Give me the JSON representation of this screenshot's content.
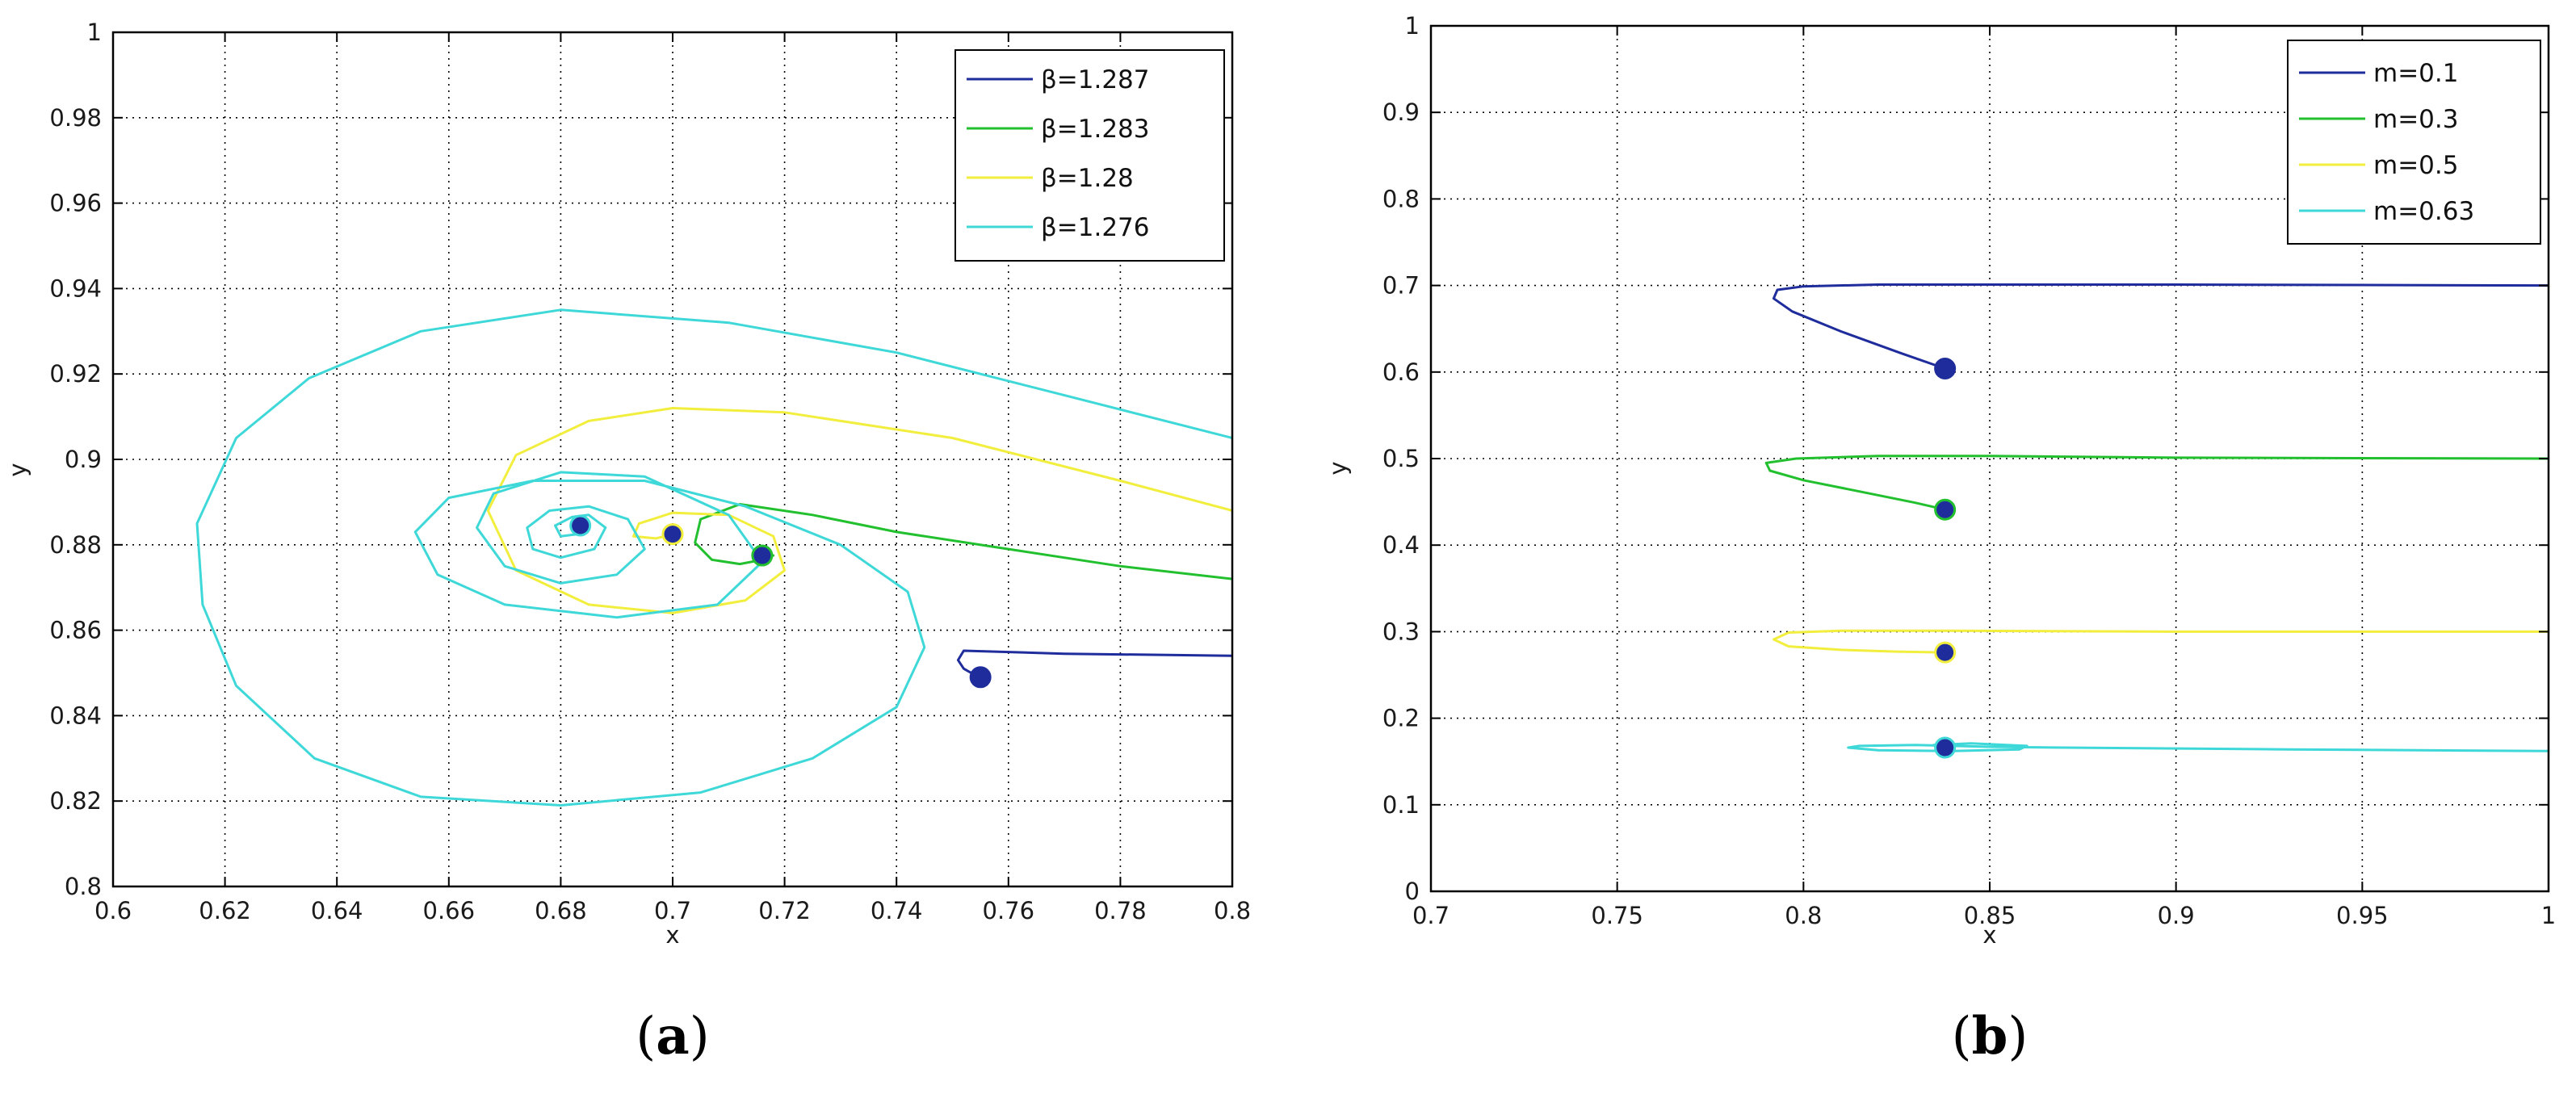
{
  "chart_data": [
    {
      "type": "line",
      "panel": "a",
      "caption": {
        "open": "(",
        "letter": "a",
        "close": ")"
      },
      "xlabel": "x",
      "ylabel": "y",
      "xlim": [
        0.6,
        0.8
      ],
      "ylim": [
        0.8,
        1.0
      ],
      "grid": true,
      "legend_position": "top-right",
      "xticks": [
        0.6,
        0.62,
        0.64,
        0.66,
        0.68,
        0.7,
        0.72,
        0.74,
        0.76,
        0.78,
        0.8
      ],
      "yticks": [
        0.8,
        0.82,
        0.84,
        0.86,
        0.88,
        0.9,
        0.92,
        0.94,
        0.96,
        0.98,
        1.0
      ],
      "xtick_labels": [
        "0.6",
        "0.62",
        "0.64",
        "0.66",
        "0.68",
        "0.7",
        "0.72",
        "0.74",
        "0.76",
        "0.78",
        "0.8"
      ],
      "ytick_labels": [
        "0.8",
        "0.82",
        "0.84",
        "0.86",
        "0.88",
        "0.9",
        "0.92",
        "0.94",
        "0.96",
        "0.98",
        "1"
      ],
      "series": [
        {
          "name": "β=1.287",
          "color": "#1f2c9c",
          "x": [
            0.8,
            0.77,
            0.752,
            0.751,
            0.752,
            0.754,
            0.755
          ],
          "y": [
            0.854,
            0.8545,
            0.8552,
            0.853,
            0.851,
            0.8495,
            0.849
          ],
          "marker": {
            "x": 0.755,
            "y": 0.849
          }
        },
        {
          "name": "β=1.283",
          "color": "#22c02f",
          "x": [
            0.8,
            0.78,
            0.76,
            0.74,
            0.725,
            0.712,
            0.705,
            0.704,
            0.707,
            0.712,
            0.716,
            0.718,
            0.716
          ],
          "y": [
            0.872,
            0.875,
            0.879,
            0.883,
            0.887,
            0.8895,
            0.886,
            0.8805,
            0.8765,
            0.8755,
            0.8765,
            0.8775,
            0.8775
          ],
          "marker": {
            "x": 0.716,
            "y": 0.8775
          }
        },
        {
          "name": "β=1.28",
          "color": "#f2ee3e",
          "x": [
            0.8,
            0.78,
            0.75,
            0.72,
            0.7,
            0.685,
            0.672,
            0.667,
            0.672,
            0.685,
            0.7,
            0.713,
            0.72,
            0.718,
            0.71,
            0.7,
            0.694,
            0.693,
            0.697,
            0.7
          ],
          "y": [
            0.888,
            0.895,
            0.905,
            0.911,
            0.912,
            0.909,
            0.901,
            0.888,
            0.874,
            0.866,
            0.864,
            0.867,
            0.874,
            0.882,
            0.887,
            0.8875,
            0.885,
            0.882,
            0.8815,
            0.8825
          ],
          "marker": {
            "x": 0.7,
            "y": 0.8825
          }
        },
        {
          "name": "β=1.276",
          "color": "#3fd8d8",
          "x": [
            0.8,
            0.77,
            0.74,
            0.71,
            0.68,
            0.655,
            0.635,
            0.622,
            0.615,
            0.616,
            0.622,
            0.636,
            0.655,
            0.68,
            0.705,
            0.725,
            0.74,
            0.745,
            0.742,
            0.73,
            0.713,
            0.695,
            0.675,
            0.66,
            0.654,
            0.658,
            0.67,
            0.69,
            0.708,
            0.716,
            0.71,
            0.695,
            0.68,
            0.668,
            0.665,
            0.67,
            0.68,
            0.69,
            0.695,
            0.692,
            0.685,
            0.678,
            0.674,
            0.675,
            0.68,
            0.686,
            0.688,
            0.685,
            0.682,
            0.679,
            0.68,
            0.683,
            0.684,
            0.6835
          ],
          "y": [
            0.905,
            0.915,
            0.925,
            0.932,
            0.935,
            0.93,
            0.919,
            0.905,
            0.885,
            0.866,
            0.847,
            0.83,
            0.821,
            0.819,
            0.822,
            0.83,
            0.842,
            0.856,
            0.869,
            0.88,
            0.889,
            0.895,
            0.895,
            0.891,
            0.883,
            0.873,
            0.866,
            0.863,
            0.866,
            0.876,
            0.887,
            0.896,
            0.897,
            0.892,
            0.884,
            0.875,
            0.871,
            0.873,
            0.879,
            0.886,
            0.889,
            0.888,
            0.884,
            0.879,
            0.877,
            0.879,
            0.884,
            0.887,
            0.8865,
            0.8845,
            0.882,
            0.8825,
            0.8845,
            0.8845
          ],
          "marker": {
            "x": 0.6835,
            "y": 0.8845
          }
        }
      ]
    },
    {
      "type": "line",
      "panel": "b",
      "caption": {
        "open": "(",
        "letter": "b",
        "close": ")"
      },
      "xlabel": "x",
      "ylabel": "y",
      "xlim": [
        0.7,
        1.0
      ],
      "ylim": [
        0.0,
        1.0
      ],
      "grid": true,
      "legend_position": "top-right",
      "xticks": [
        0.7,
        0.75,
        0.8,
        0.85,
        0.9,
        0.95,
        1.0
      ],
      "yticks": [
        0.0,
        0.1,
        0.2,
        0.3,
        0.4,
        0.5,
        0.6,
        0.7,
        0.8,
        0.9,
        1.0
      ],
      "xtick_labels": [
        "0.7",
        "0.75",
        "0.8",
        "0.85",
        "0.9",
        "0.95",
        "1"
      ],
      "ytick_labels": [
        "0",
        "0.1",
        "0.2",
        "0.3",
        "0.4",
        "0.5",
        "0.6",
        "0.7",
        "0.8",
        "0.9",
        "1"
      ],
      "series": [
        {
          "name": "m=0.1",
          "color": "#1f2c9c",
          "x": [
            1.0,
            0.9,
            0.82,
            0.8,
            0.793,
            0.792,
            0.797,
            0.81,
            0.826,
            0.838
          ],
          "y": [
            0.7,
            0.701,
            0.701,
            0.699,
            0.695,
            0.685,
            0.67,
            0.647,
            0.622,
            0.604
          ],
          "marker": {
            "x": 0.838,
            "y": 0.604
          }
        },
        {
          "name": "m=0.3",
          "color": "#22c02f",
          "x": [
            1.0,
            0.9,
            0.85,
            0.82,
            0.798,
            0.79,
            0.791,
            0.8,
            0.815,
            0.83,
            0.838
          ],
          "y": [
            0.5,
            0.501,
            0.503,
            0.503,
            0.5,
            0.495,
            0.486,
            0.475,
            0.462,
            0.449,
            0.441
          ],
          "marker": {
            "x": 0.838,
            "y": 0.441
          }
        },
        {
          "name": "m=0.5",
          "color": "#f2ee3e",
          "x": [
            1.0,
            0.9,
            0.84,
            0.81,
            0.796,
            0.792,
            0.796,
            0.81,
            0.825,
            0.838
          ],
          "y": [
            0.3,
            0.3,
            0.301,
            0.301,
            0.299,
            0.291,
            0.283,
            0.279,
            0.277,
            0.276
          ],
          "marker": {
            "x": 0.838,
            "y": 0.276
          }
        },
        {
          "name": "m=0.63",
          "color": "#3fd8d8",
          "x": [
            1.0,
            0.93,
            0.87,
            0.85,
            0.84,
            0.83,
            0.815,
            0.812,
            0.82,
            0.84,
            0.858,
            0.86,
            0.845,
            0.835,
            0.836,
            0.838
          ],
          "y": [
            0.162,
            0.164,
            0.166,
            0.167,
            0.168,
            0.169,
            0.168,
            0.166,
            0.163,
            0.162,
            0.164,
            0.168,
            0.171,
            0.169,
            0.166,
            0.166
          ],
          "marker": {
            "x": 0.838,
            "y": 0.166
          }
        }
      ]
    }
  ]
}
